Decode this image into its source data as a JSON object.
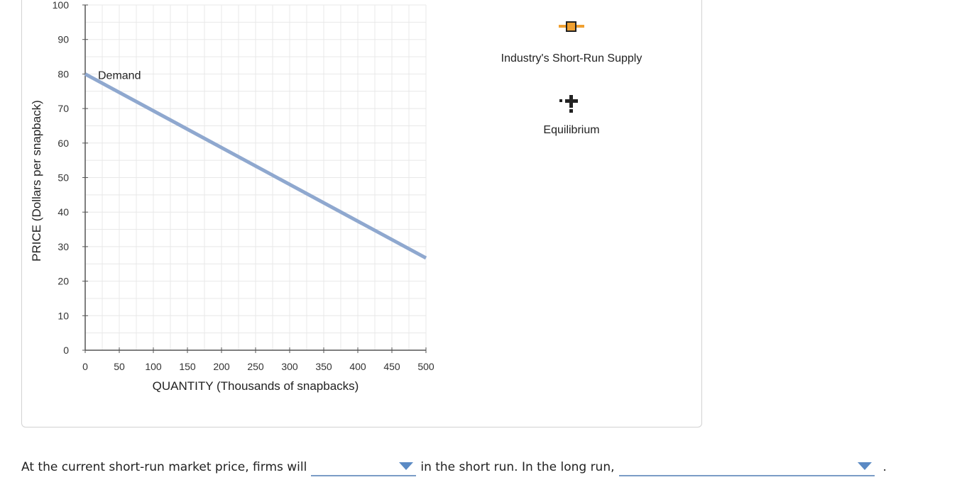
{
  "chart_data": {
    "type": "line",
    "xlabel": "QUANTITY (Thousands of snapbacks)",
    "ylabel": "PRICE (Dollars per snapback)",
    "xlim": [
      0,
      500
    ],
    "ylim": [
      0,
      100
    ],
    "x_ticks": [
      "0",
      "50",
      "100",
      "150",
      "200",
      "250",
      "300",
      "350",
      "400",
      "450",
      "500"
    ],
    "y_ticks": [
      "0",
      "10",
      "20",
      "30",
      "40",
      "50",
      "60",
      "70",
      "80",
      "90",
      "100"
    ],
    "grid": true,
    "series": [
      {
        "name": "Demand",
        "x": [
          0,
          500
        ],
        "y": [
          80,
          26.7
        ],
        "color": "#8fa8cf"
      }
    ]
  },
  "tools": [
    {
      "label": "Industry's Short-Run Supply",
      "icon": "orange-square-line-icon",
      "color": "#f0a030"
    },
    {
      "label": "Equilibrium",
      "icon": "black-plus-dotted-icon",
      "color": "#222222"
    }
  ],
  "question": {
    "part1": "At the current short-run market price, firms will",
    "part2": "in the short run. In the long run,",
    "part3": ".",
    "dropdown1_value": "",
    "dropdown2_value": ""
  },
  "colors": {
    "dropdown_accent": "#5b8ac4",
    "demand": "#8fa8cf",
    "grid": "#e8e8e8"
  }
}
